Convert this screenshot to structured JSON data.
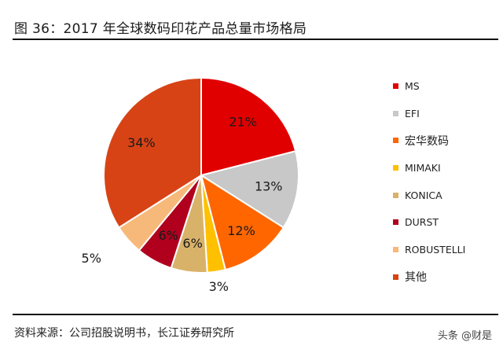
{
  "header": {
    "title": "图 36：2017 年全球数码印花产品总量市场格局"
  },
  "footer": {
    "source": "资料来源：公司招股说明书，长江证券研究所",
    "watermark": "头条 @财是"
  },
  "chart_data": {
    "type": "pie",
    "title": "2017 年全球数码印花产品总量市场格局",
    "start_angle": "12 o'clock",
    "direction": "clockwise",
    "legend_position": "right",
    "slices": [
      {
        "label": "MS",
        "value": 21,
        "display": "21%",
        "color": "#E00000"
      },
      {
        "label": "EFI",
        "value": 13,
        "display": "13%",
        "color": "#C8C8C8"
      },
      {
        "label": "宏华数码",
        "value": 12,
        "display": "12%",
        "color": "#FF6600"
      },
      {
        "label": "MIMAKI",
        "value": 3,
        "display": "3%",
        "color": "#FFC000"
      },
      {
        "label": "KONICA",
        "value": 6,
        "display": "6%",
        "color": "#D9B26A"
      },
      {
        "label": "DURST",
        "value": 6,
        "display": "6%",
        "color": "#B0001E"
      },
      {
        "label": "ROBUSTELLI",
        "value": 5,
        "display": "5%",
        "color": "#F7B97A"
      },
      {
        "label": "其他",
        "value": 34,
        "display": "34%",
        "color": "#D84315"
      }
    ]
  }
}
